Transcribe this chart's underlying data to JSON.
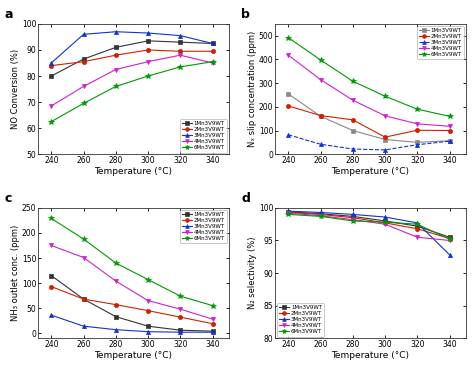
{
  "temperature": [
    240,
    260,
    280,
    300,
    320,
    340
  ],
  "panel_a": {
    "title": "a",
    "ylabel": "NO Conversion (%)",
    "xlabel": "Temperature (°C)",
    "ylim": [
      50,
      100
    ],
    "yticks": [
      50,
      60,
      70,
      80,
      90,
      100
    ],
    "legend_loc": "lower right",
    "series": {
      "1Mn3V9WT": {
        "color": "#333333",
        "marker": "s",
        "linestyle": "-",
        "values": [
          80,
          86.5,
          91,
          93.5,
          93,
          92.5
        ]
      },
      "2Mn3V9WT": {
        "color": "#cc2200",
        "marker": "o",
        "linestyle": "-",
        "values": [
          84,
          85.5,
          88,
          90,
          89.5,
          89.5
        ]
      },
      "3Mn3V9WT": {
        "color": "#1133cc",
        "marker": "^",
        "linestyle": "-",
        "values": [
          85,
          96,
          97,
          96.5,
          95.5,
          92.5
        ]
      },
      "4Mn3V9WT": {
        "color": "#cc22cc",
        "marker": "v",
        "linestyle": "-",
        "values": [
          68.5,
          76,
          82.5,
          85.5,
          88,
          85
        ]
      },
      "6Mn3V9WT": {
        "color": "#009900",
        "marker": "*",
        "linestyle": "-",
        "values": [
          62.5,
          69.5,
          76,
          80,
          83.5,
          85.5
        ]
      }
    }
  },
  "panel_b": {
    "title": "b",
    "ylabel": "Nₓ slip concentration (ppm)",
    "xlabel": "Temperature (°C)",
    "ylim": [
      0,
      550
    ],
    "yticks": [
      0,
      100,
      200,
      300,
      400,
      500
    ],
    "legend_loc": "upper right",
    "series": {
      "1Mn3V9WT": {
        "color": "#888888",
        "marker": "s",
        "linestyle": "-",
        "values": [
          255,
          160,
          100,
          62,
          50,
          57
        ]
      },
      "2Mn3V9WT": {
        "color": "#cc2200",
        "marker": "o",
        "linestyle": "-",
        "values": [
          204,
          163,
          145,
          72,
          101,
          100
        ]
      },
      "3Mn3V9WT": {
        "color": "#1133cc",
        "marker": "^",
        "linestyle": "--",
        "values": [
          82,
          42,
          22,
          18,
          40,
          55
        ]
      },
      "4Mn3V9WT": {
        "color": "#cc22cc",
        "marker": "v",
        "linestyle": "-",
        "values": [
          418,
          315,
          228,
          162,
          128,
          118
        ]
      },
      "6Mn3V9WT": {
        "color": "#009900",
        "marker": "*",
        "linestyle": "-",
        "values": [
          492,
          398,
          308,
          245,
          190,
          160
        ]
      }
    }
  },
  "panel_c": {
    "title": "c",
    "ylabel": "NH₃ outlet conc. (ppm)",
    "xlabel": "Temperature (°C)",
    "ylim": [
      -10,
      250
    ],
    "yticks": [
      0,
      50,
      100,
      150,
      200,
      250
    ],
    "legend_loc": "upper right",
    "series": {
      "1Mn3V9WT": {
        "color": "#333333",
        "marker": "s",
        "linestyle": "-",
        "values": [
          115,
          68,
          33,
          14,
          6,
          4
        ]
      },
      "2Mn3V9WT": {
        "color": "#cc2200",
        "marker": "o",
        "linestyle": "-",
        "values": [
          93,
          68,
          57,
          45,
          32,
          19
        ]
      },
      "3Mn3V9WT": {
        "color": "#1133cc",
        "marker": "^",
        "linestyle": "-",
        "values": [
          36,
          14,
          7,
          3,
          2,
          2
        ]
      },
      "4Mn3V9WT": {
        "color": "#cc22cc",
        "marker": "v",
        "linestyle": "-",
        "values": [
          175,
          151,
          104,
          65,
          48,
          28
        ]
      },
      "6Mn3V9WT": {
        "color": "#009900",
        "marker": "*",
        "linestyle": "-",
        "values": [
          229,
          188,
          140,
          107,
          74,
          55
        ]
      }
    }
  },
  "panel_d": {
    "title": "d",
    "ylabel": "N₂ selectivity (%)",
    "xlabel": "Temperature (°C)",
    "ylim": [
      80,
      100
    ],
    "yticks": [
      80,
      85,
      90,
      95,
      100
    ],
    "legend_loc": "lower left",
    "series": {
      "1Mn3V9WT": {
        "color": "#333333",
        "marker": "s",
        "linestyle": "-",
        "values": [
          99.4,
          99.1,
          98.7,
          98.0,
          97.2,
          95.5
        ]
      },
      "2Mn3V9WT": {
        "color": "#cc2200",
        "marker": "o",
        "linestyle": "-",
        "values": [
          99.3,
          99.0,
          98.5,
          97.7,
          96.8,
          95.3
        ]
      },
      "3Mn3V9WT": {
        "color": "#1133cc",
        "marker": "^",
        "linestyle": "-",
        "values": [
          99.5,
          99.3,
          99.0,
          98.6,
          97.7,
          92.8
        ]
      },
      "4Mn3V9WT": {
        "color": "#cc22cc",
        "marker": "v",
        "linestyle": "-",
        "values": [
          99.2,
          98.8,
          98.2,
          97.5,
          95.5,
          95.0
        ]
      },
      "6Mn3V9WT": {
        "color": "#009900",
        "marker": "*",
        "linestyle": "-",
        "values": [
          99.0,
          98.7,
          98.0,
          97.8,
          97.5,
          95.2
        ]
      }
    }
  },
  "legend_labels": [
    "1Mn3V9WT",
    "2Mn3V9WT",
    "3Mn3V9WT",
    "4Mn3V9WT",
    "6Mn3V9WT"
  ],
  "background_color": "#ffffff",
  "axes_facecolor": "#ffffff"
}
